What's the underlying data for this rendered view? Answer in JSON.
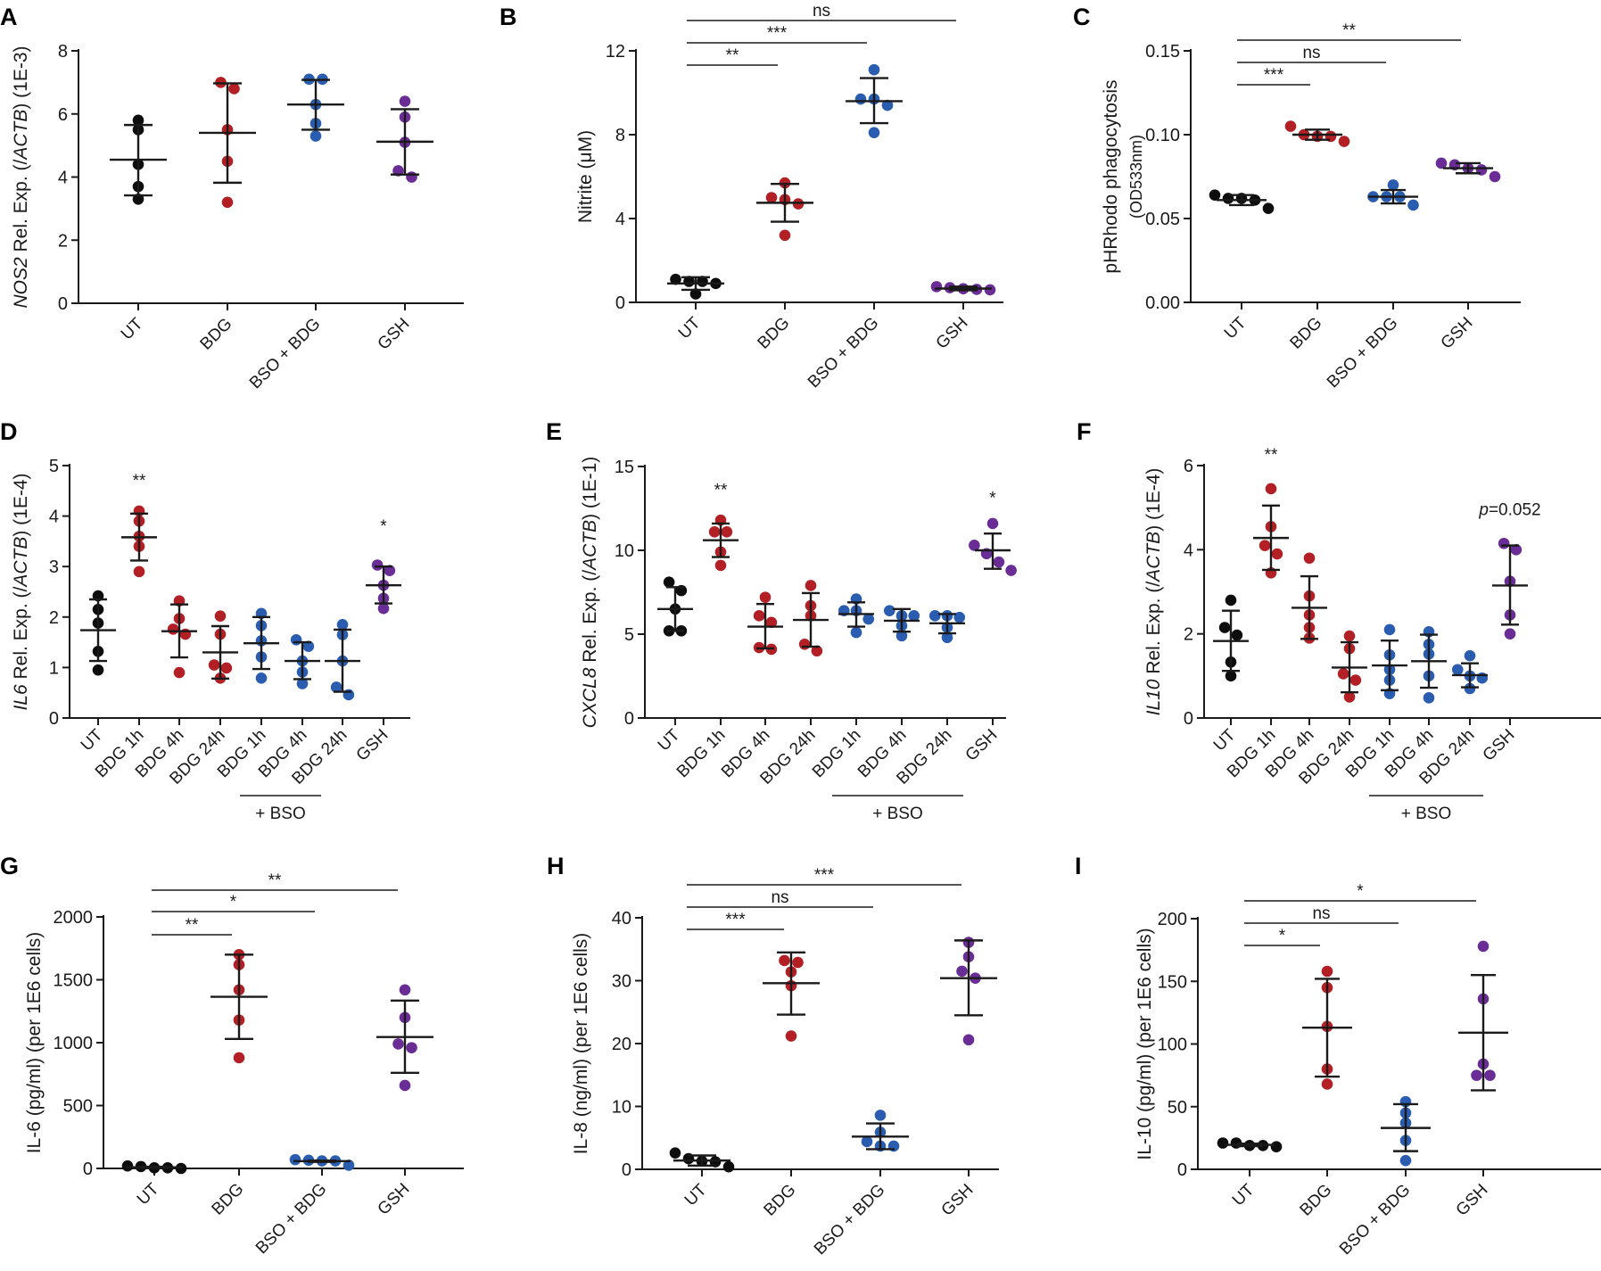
{
  "figure": {
    "colors": {
      "UT": "#0d0d0d",
      "BDG": "#b21f24",
      "BSO": "#2a5db0",
      "GSH": "#6a2c95",
      "axis": "#1a1a1a"
    }
  },
  "chart_data": [
    {
      "id": "A",
      "panel_label": "A",
      "type": "scatter",
      "title": "",
      "ylabel_italic": "NOS2",
      "ylabel_rest": " Rel. Exp. (/",
      "ylabel_italic2": "ACTB",
      "ylabel_end": ") (1E-3)",
      "ylim": [
        0,
        8
      ],
      "yticks": [
        "0",
        "2",
        "4",
        "6",
        "8"
      ],
      "ytick_values": [
        0,
        2,
        4,
        6,
        8
      ],
      "categories": [
        "UT",
        "BDG",
        "BSO + BDG",
        "GSH"
      ],
      "category_colors": [
        "UT",
        "BDG",
        "BSO",
        "GSH"
      ],
      "points": [
        [
          5.8,
          5.5,
          4.4,
          3.7,
          3.3
        ],
        [
          7.0,
          6.8,
          5.5,
          4.5,
          3.2
        ],
        [
          7.1,
          7.1,
          6.3,
          5.7,
          5.3
        ],
        [
          6.4,
          5.9,
          5.1,
          4.2,
          4.0
        ]
      ],
      "mean": [
        4.55,
        5.4,
        6.3,
        5.12
      ],
      "sd_upper": [
        5.65,
        6.97,
        7.08,
        6.15
      ],
      "sd_lower": [
        3.42,
        3.82,
        5.5,
        4.08
      ],
      "significance": [],
      "group_annotations": []
    },
    {
      "id": "B",
      "panel_label": "B",
      "type": "scatter",
      "ylabel_plain": "Nitrite (μM)",
      "ylim": [
        0,
        12
      ],
      "yticks": [
        "0",
        "4",
        "8",
        "12"
      ],
      "ytick_values": [
        0,
        4,
        8,
        12
      ],
      "categories": [
        "UT",
        "BDG",
        "BSO + BDG",
        "GSH"
      ],
      "category_colors": [
        "UT",
        "BDG",
        "BSO",
        "GSH"
      ],
      "points": [
        [
          1.0,
          1.1,
          0.9,
          1.0,
          0.4
        ],
        [
          5.7,
          5.0,
          4.7,
          4.9,
          3.2
        ],
        [
          11.1,
          9.7,
          9.4,
          9.7,
          8.1
        ],
        [
          0.6,
          0.75,
          0.65,
          0.7,
          0.62
        ]
      ],
      "mean": [
        0.9,
        4.75,
        9.6,
        0.66
      ],
      "sd_upper": [
        1.2,
        5.65,
        10.7,
        0.75
      ],
      "sd_lower": [
        0.6,
        3.85,
        8.55,
        0.58
      ],
      "significance": [
        {
          "from": "UT",
          "to": "BDG",
          "label": "**",
          "level": 0
        },
        {
          "from": "UT",
          "to": "BSO + BDG",
          "label": "***",
          "level": 1
        },
        {
          "from": "UT",
          "to": "GSH",
          "label": "ns",
          "level": 2
        }
      ],
      "group_annotations": []
    },
    {
      "id": "C",
      "panel_label": "C",
      "type": "scatter",
      "ylabel_plain": "pHRhodo phagocytosis",
      "ylabel_sub": "(OD533nm)",
      "ylim": [
        0,
        0.15
      ],
      "yticks": [
        "0.00",
        "0.05",
        "0.10",
        "0.15"
      ],
      "ytick_values": [
        0,
        0.05,
        0.1,
        0.15
      ],
      "categories": [
        "UT",
        "BDG",
        "BSO + BDG",
        "GSH"
      ],
      "category_colors": [
        "UT",
        "BDG",
        "BSO",
        "GSH"
      ],
      "points": [
        [
          0.062,
          0.064,
          0.061,
          0.062,
          0.056
        ],
        [
          0.105,
          0.096,
          0.1,
          0.099,
          0.099
        ],
        [
          0.058,
          0.063,
          0.07,
          0.063,
          0.063
        ],
        [
          0.082,
          0.083,
          0.075,
          0.079,
          0.08
        ]
      ],
      "mean": [
        0.061,
        0.1,
        0.063,
        0.08
      ],
      "sd_upper": [
        0.064,
        0.103,
        0.067,
        0.083
      ],
      "sd_lower": [
        0.058,
        0.097,
        0.059,
        0.077
      ],
      "significance": [
        {
          "from": "UT",
          "to": "BDG",
          "label": "***",
          "level": 0
        },
        {
          "from": "UT",
          "to": "BSO + BDG",
          "label": "ns",
          "level": 1
        },
        {
          "from": "UT",
          "to": "GSH",
          "label": "**",
          "level": 2
        }
      ],
      "group_annotations": []
    },
    {
      "id": "D",
      "panel_label": "D",
      "type": "scatter",
      "ylabel_italic": "IL6",
      "ylabel_rest": " Rel. Exp. (/",
      "ylabel_italic2": "ACTB",
      "ylabel_end": ") (1E-4)",
      "ylim": [
        0,
        5
      ],
      "yticks": [
        "0",
        "1",
        "2",
        "3",
        "4",
        "5"
      ],
      "ytick_values": [
        0,
        1,
        2,
        3,
        4,
        5
      ],
      "categories": [
        "UT",
        "BDG 1h",
        "BDG 4h",
        "BDG 24h",
        "BDG 1h",
        "BDG 4h",
        "BDG 24h",
        "GSH"
      ],
      "category_colors": [
        "UT",
        "BDG",
        "BDG",
        "BDG",
        "BSO",
        "BSO",
        "BSO",
        "GSH"
      ],
      "points": [
        [
          2.42,
          2.15,
          1.88,
          1.32,
          0.95
        ],
        [
          4.1,
          3.9,
          3.6,
          3.4,
          2.9
        ],
        [
          2.32,
          1.97,
          1.76,
          1.66,
          0.9
        ],
        [
          2.02,
          1.66,
          1.05,
          0.99,
          0.79
        ],
        [
          2.07,
          1.83,
          1.53,
          1.21,
          0.79
        ],
        [
          1.55,
          1.42,
          1.13,
          0.91,
          0.68
        ],
        [
          1.85,
          1.65,
          1.13,
          0.61,
          0.46
        ],
        [
          3.03,
          2.92,
          2.63,
          2.37,
          2.17
        ]
      ],
      "mean": [
        1.74,
        3.58,
        1.72,
        1.3,
        1.48,
        1.13,
        1.13,
        2.63
      ],
      "sd_upper": [
        2.35,
        4.05,
        2.25,
        1.82,
        2.0,
        1.5,
        1.75,
        3.0
      ],
      "sd_lower": [
        1.13,
        3.12,
        1.2,
        0.78,
        0.97,
        0.77,
        0.52,
        2.27
      ],
      "significance": [
        {
          "at": "BDG 1h",
          "index": 1,
          "label": "**",
          "y": 4.7
        },
        {
          "at": "GSH",
          "index": 7,
          "label": "*",
          "y": 3.8
        }
      ],
      "group_annotations": [
        {
          "label": "+ BSO",
          "from_index": 4,
          "to_index": 6
        }
      ]
    },
    {
      "id": "E",
      "panel_label": "E",
      "type": "scatter",
      "ylabel_italic": "CXCL8",
      "ylabel_rest": " Rel. Exp. (/",
      "ylabel_italic2": "ACTB",
      "ylabel_end": ") (1E-1)",
      "ylim": [
        0,
        15
      ],
      "yticks": [
        "0",
        "5",
        "10",
        "15"
      ],
      "ytick_values": [
        0,
        5,
        10,
        15
      ],
      "categories": [
        "UT",
        "BDG 1h",
        "BDG 4h",
        "BDG 24h",
        "BDG 1h",
        "BDG 4h",
        "BDG 24h",
        "GSH"
      ],
      "category_colors": [
        "UT",
        "BDG",
        "BDG",
        "BDG",
        "BSO",
        "BSO",
        "BSO",
        "GSH"
      ],
      "points": [
        [
          8.1,
          7.6,
          6.5,
          5.2,
          5.2
        ],
        [
          11.8,
          11.1,
          11.1,
          9.9,
          9.1
        ],
        [
          7.2,
          6.1,
          5.7,
          4.2,
          4.1
        ],
        [
          7.9,
          6.7,
          6.1,
          4.4,
          4.0
        ],
        [
          7.1,
          6.4,
          6.4,
          5.9,
          5.1
        ],
        [
          6.4,
          6.1,
          6.1,
          5.5,
          4.9
        ],
        [
          6.1,
          6.1,
          6.0,
          5.4,
          4.8
        ],
        [
          11.6,
          10.3,
          9.8,
          9.3,
          8.8
        ]
      ],
      "mean": [
        6.5,
        10.6,
        5.45,
        5.85,
        6.2,
        5.8,
        5.65,
        10.0
      ],
      "sd_upper": [
        7.8,
        11.6,
        6.8,
        7.45,
        6.9,
        6.5,
        6.2,
        11.0
      ],
      "sd_lower": [
        5.2,
        9.6,
        4.15,
        4.25,
        5.45,
        5.15,
        5.05,
        8.9
      ],
      "significance": [
        {
          "at": "BDG 1h",
          "index": 1,
          "label": "**",
          "y": 13.6
        },
        {
          "at": "GSH",
          "index": 7,
          "label": "*",
          "y": 13.1
        }
      ],
      "group_annotations": [
        {
          "label": "+ BSO",
          "from_index": 4,
          "to_index": 6
        }
      ]
    },
    {
      "id": "F",
      "panel_label": "F",
      "type": "scatter",
      "ylabel_italic": "IL10",
      "ylabel_rest": " Rel. Exp. (/",
      "ylabel_italic2": "ACTB",
      "ylabel_end": ") (1E-4)",
      "ylim": [
        0,
        6
      ],
      "yticks": [
        "0",
        "2",
        "4",
        "6"
      ],
      "ytick_values": [
        0,
        2,
        4,
        6
      ],
      "categories": [
        "UT",
        "BDG 1h",
        "BDG 4h",
        "BDG 24h",
        "BDG 1h",
        "BDG 4h",
        "BDG 24h",
        "GSH"
      ],
      "category_colors": [
        "UT",
        "BDG",
        "BDG",
        "BDG",
        "BSO",
        "BSO",
        "BSO",
        "GSH"
      ],
      "points": [
        [
          2.8,
          2.15,
          1.97,
          1.33,
          1.0
        ],
        [
          5.45,
          4.55,
          4.1,
          3.9,
          3.45
        ],
        [
          3.8,
          2.9,
          2.45,
          2.15,
          1.9
        ],
        [
          1.95,
          1.65,
          1.05,
          0.9,
          0.5
        ],
        [
          2.1,
          1.5,
          1.15,
          0.9,
          0.58
        ],
        [
          2.05,
          1.75,
          1.52,
          1.0,
          0.48
        ],
        [
          1.48,
          1.15,
          1.0,
          0.95,
          0.7
        ],
        [
          4.15,
          4.0,
          3.25,
          2.45,
          2.0
        ]
      ],
      "mean": [
        1.83,
        4.28,
        2.62,
        1.2,
        1.25,
        1.35,
        1.02,
        3.15
      ],
      "sd_upper": [
        2.55,
        5.05,
        3.37,
        1.8,
        1.84,
        1.98,
        1.3,
        4.1
      ],
      "sd_lower": [
        1.12,
        3.52,
        1.88,
        0.61,
        0.66,
        0.72,
        0.73,
        2.22
      ],
      "significance": [
        {
          "at": "BDG 1h",
          "index": 1,
          "label": "**",
          "y": 6.25
        },
        {
          "at": "GSH",
          "index": 7,
          "label": "=0.052",
          "prefix_italic": "p",
          "y": 4.95
        }
      ],
      "group_annotations": [
        {
          "label": "+ BSO",
          "from_index": 4,
          "to_index": 6
        }
      ]
    },
    {
      "id": "G",
      "panel_label": "G",
      "type": "scatter",
      "ylabel_plain": "IL-6 (pg/ml) (per 1E6 cells)",
      "ylim": [
        0,
        2000
      ],
      "yticks": [
        "0",
        "500",
        "1000",
        "1500",
        "2000"
      ],
      "ytick_values": [
        0,
        500,
        1000,
        1500,
        2000
      ],
      "categories": [
        "UT",
        "BDG",
        "BSO + BDG",
        "GSH"
      ],
      "category_colors": [
        "UT",
        "BDG",
        "BSO",
        "GSH"
      ],
      "points": [
        [
          5,
          20,
          0,
          15,
          5
        ],
        [
          1700,
          1620,
          1420,
          1180,
          880
        ],
        [
          60,
          70,
          60,
          65,
          25
        ],
        [
          1420,
          1200,
          990,
          960,
          660
        ]
      ],
      "mean": [
        9,
        1365,
        58,
        1045
      ],
      "sd_upper": [
        14,
        1700,
        62,
        1335
      ],
      "sd_lower": [
        4,
        1030,
        52,
        760
      ],
      "significance": [
        {
          "from": "UT",
          "to": "BDG",
          "label": "**",
          "level": 0
        },
        {
          "from": "UT",
          "to": "BSO + BDG",
          "label": "*",
          "level": 1
        },
        {
          "from": "UT",
          "to": "GSH",
          "label": "**",
          "level": 2
        }
      ],
      "group_annotations": []
    },
    {
      "id": "H",
      "panel_label": "H",
      "type": "scatter",
      "ylabel_plain": "IL-8 (ng/ml) (per 1E6 cells)",
      "ylim": [
        0,
        40
      ],
      "yticks": [
        "0",
        "10",
        "20",
        "30",
        "40"
      ],
      "ytick_values": [
        0,
        10,
        20,
        30,
        40
      ],
      "categories": [
        "UT",
        "BDG",
        "BSO + BDG",
        "GSH"
      ],
      "category_colors": [
        "UT",
        "BDG",
        "BSO",
        "GSH"
      ],
      "points": [
        [
          2.6,
          1.7,
          0.4,
          1.3,
          1.2
        ],
        [
          33.2,
          31.4,
          29.2,
          32.9,
          21.2
        ],
        [
          8.6,
          5.9,
          4.4,
          3.7,
          3.7
        ],
        [
          36.1,
          33.8,
          31.5,
          30.4,
          20.6
        ]
      ],
      "mean": [
        1.4,
        29.6,
        5.2,
        30.4
      ],
      "sd_upper": [
        2.2,
        34.5,
        7.3,
        36.4
      ],
      "sd_lower": [
        0.6,
        24.6,
        3.2,
        24.5
      ],
      "significance": [
        {
          "from": "UT",
          "to": "BDG",
          "label": "***",
          "level": 0
        },
        {
          "from": "UT",
          "to": "BSO + BDG",
          "label": "ns",
          "level": 1
        },
        {
          "from": "UT",
          "to": "GSH",
          "label": "***",
          "level": 2
        }
      ],
      "group_annotations": []
    },
    {
      "id": "I",
      "panel_label": "I",
      "type": "scatter",
      "ylabel_plain": "IL-10 (pg/ml) (per 1E6 cells)",
      "ylim": [
        0,
        200
      ],
      "yticks": [
        "0",
        "50",
        "100",
        "150",
        "200"
      ],
      "ytick_values": [
        0,
        50,
        100,
        150,
        200
      ],
      "categories": [
        "UT",
        "BDG",
        "BSO + BDG",
        "GSH"
      ],
      "category_colors": [
        "UT",
        "BDG",
        "BSO",
        "GSH"
      ],
      "points": [
        [
          19,
          21,
          19,
          21,
          18
        ],
        [
          158,
          145,
          114,
          80,
          68
        ],
        [
          54,
          45,
          37,
          23,
          7
        ],
        [
          178,
          136,
          84,
          75,
          75
        ]
      ],
      "mean": [
        19.5,
        113,
        33,
        109
      ],
      "sd_upper": [
        20.5,
        152,
        52,
        155
      ],
      "sd_lower": [
        18.5,
        74,
        14.5,
        63
      ],
      "significance": [
        {
          "from": "UT",
          "to": "BDG",
          "label": "*",
          "level": 0
        },
        {
          "from": "UT",
          "to": "BSO + BDG",
          "label": "ns",
          "level": 1
        },
        {
          "from": "UT",
          "to": "GSH",
          "label": "*",
          "level": 2
        }
      ],
      "group_annotations": []
    }
  ]
}
